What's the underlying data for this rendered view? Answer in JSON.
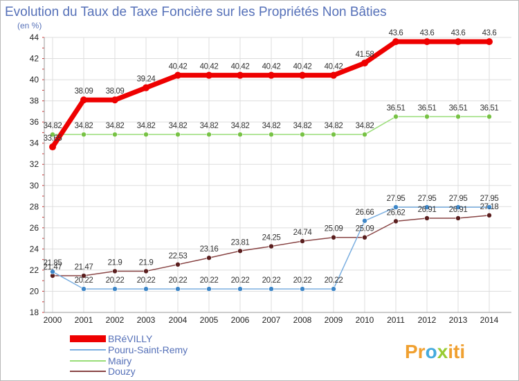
{
  "chart_data": {
    "type": "line",
    "title": "Evolution du Taux de Taxe Foncière sur les Propriétés Non Bâties",
    "ylabel": "(en %)",
    "xlabel": "",
    "x": [
      "2000",
      "2001",
      "2002",
      "2003",
      "2004",
      "2005",
      "2006",
      "2007",
      "2008",
      "2009",
      "2010",
      "2011",
      "2012",
      "2013",
      "2014"
    ],
    "ylim": [
      18,
      44
    ],
    "yticks": [
      "18",
      "20",
      "22",
      "24",
      "26",
      "28",
      "30",
      "32",
      "34",
      "36",
      "38",
      "40",
      "42",
      "44"
    ],
    "grid": true,
    "legend_position": "bottom-left",
    "series": [
      {
        "name": "BRéVILLY",
        "color": "#ee0000",
        "marker": "#ee0000",
        "values": [
          33.65,
          38.09,
          38.09,
          39.24,
          40.42,
          40.42,
          40.42,
          40.42,
          40.42,
          40.42,
          41.58,
          43.6,
          43.6,
          43.6,
          43.6
        ],
        "labels": [
          "33.65",
          "38.09",
          "38.09",
          "39.24",
          "40.42",
          "40.42",
          "40.42",
          "40.42",
          "40.42",
          "40.42",
          "41.58",
          "43.6",
          "43.6",
          "43.6",
          "43.6"
        ]
      },
      {
        "name": "Pouru-Saint-Remy",
        "color": "#7aaee0",
        "marker": "#3d86c8",
        "values": [
          21.85,
          20.22,
          20.22,
          20.22,
          20.22,
          20.22,
          20.22,
          20.22,
          20.22,
          20.22,
          26.66,
          27.95,
          27.95,
          27.95,
          27.95
        ],
        "labels": [
          "21.85",
          "20.22",
          "20.22",
          "20.22",
          "20.22",
          "20.22",
          "20.22",
          "20.22",
          "20.22",
          "20.22",
          "26.66",
          "27.95",
          "27.95",
          "27.95",
          "27.95"
        ]
      },
      {
        "name": "Mairy",
        "color": "#99dd77",
        "marker": "#77c244",
        "values": [
          34.82,
          34.82,
          34.82,
          34.82,
          34.82,
          34.82,
          34.82,
          34.82,
          34.82,
          34.82,
          34.82,
          36.51,
          36.51,
          36.51,
          36.51
        ],
        "labels": [
          "34.82",
          "34.82",
          "34.82",
          "34.82",
          "34.82",
          "34.82",
          "34.82",
          "34.82",
          "34.82",
          "34.82",
          "34.82",
          "36.51",
          "36.51",
          "36.51",
          "36.51"
        ]
      },
      {
        "name": "Douzy",
        "color": "#884444",
        "marker": "#5a1e1e",
        "values": [
          21.47,
          21.47,
          21.9,
          21.9,
          22.53,
          23.16,
          23.81,
          24.25,
          24.74,
          25.09,
          25.09,
          26.62,
          26.91,
          26.91,
          27.18
        ],
        "labels": [
          "21.47",
          "21.47",
          "21.9",
          "21.9",
          "22.53",
          "23.16",
          "23.81",
          "24.25",
          "24.74",
          "25.09",
          "25.09",
          "26.62",
          "26.91",
          "26.91",
          "27.18"
        ]
      }
    ]
  },
  "logo": {
    "p1": "Pr",
    "p2": "o",
    "p3": "x",
    "p4": "iti"
  },
  "colors": {
    "grid": "#dddddd",
    "title": "#5570b8",
    "axis_ticks": "#cc3333"
  }
}
